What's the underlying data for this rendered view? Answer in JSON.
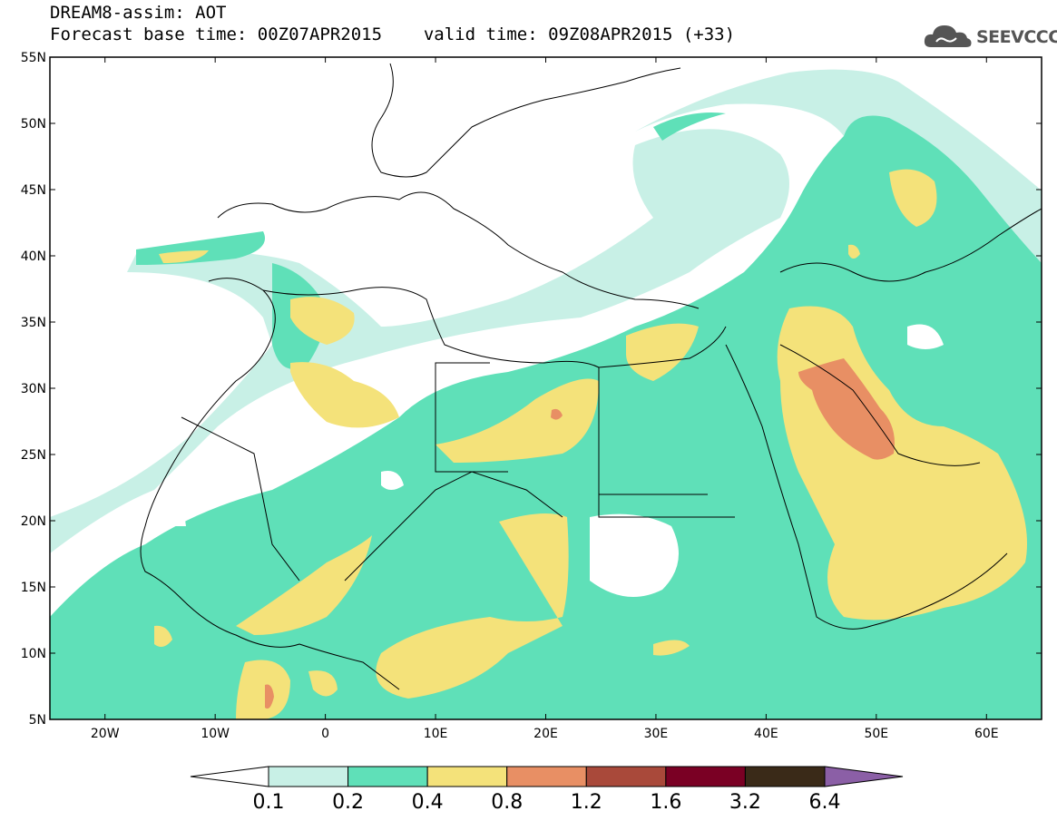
{
  "header": {
    "model": "DREAM8-assim: AOT",
    "base_time_label": "Forecast base time:",
    "base_time": "00Z07APR2015",
    "valid_label": "valid time:",
    "valid_time": "09Z08APR2015 (+33)"
  },
  "logo": {
    "text": "SEEVCCC",
    "icon": "cloud-logo-icon"
  },
  "map": {
    "lat_labels": [
      "55N",
      "50N",
      "45N",
      "40N",
      "35N",
      "30N",
      "25N",
      "20N",
      "15N",
      "10N",
      "5N"
    ],
    "lon_labels": [
      "20W",
      "10W",
      "0",
      "10E",
      "20E",
      "30E",
      "40E",
      "50E",
      "60E"
    ],
    "lon_range": [
      -25,
      65
    ],
    "lat_range": [
      5,
      55
    ]
  },
  "colorbar": {
    "levels": [
      "0.1",
      "0.2",
      "0.4",
      "0.8",
      "1.2",
      "1.6",
      "3.2",
      "6.4"
    ],
    "colors": [
      "#ffffff",
      "#c8f0e6",
      "#5fe0b8",
      "#f4e27a",
      "#e88f64",
      "#a9493a",
      "#7a0024",
      "#3a2a18",
      "#8b5fa6"
    ]
  }
}
